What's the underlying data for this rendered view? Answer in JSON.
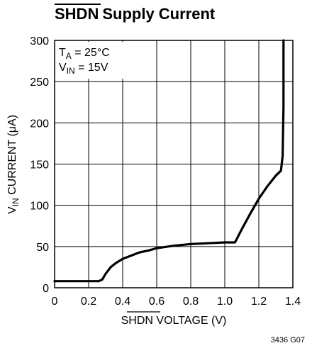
{
  "chart_data": {
    "type": "line",
    "title": "SHDN Supply Current",
    "xlabel": "SHDN VOLTAGE (V)",
    "ylabel": "VIN CURRENT (μA)",
    "xlim": [
      0,
      1.4
    ],
    "ylim": [
      0,
      300
    ],
    "x_ticks": [
      "0",
      "0.2",
      "0.4",
      "0.6",
      "0.8",
      "1.0",
      "1.2",
      "1.4"
    ],
    "y_ticks": [
      "0",
      "50",
      "100",
      "150",
      "200",
      "250",
      "300"
    ],
    "grid": true,
    "annotations": [
      "TA = 25°C",
      "VIN = 15V"
    ],
    "figure_id": "3436 G07",
    "series": [
      {
        "x": [
          0,
          0.26,
          0.28,
          0.3,
          0.33,
          0.36,
          0.4,
          0.45,
          0.5,
          0.55,
          0.6,
          0.7,
          0.8,
          0.9,
          1.0,
          1.06,
          1.1,
          1.15,
          1.2,
          1.25,
          1.3,
          1.33,
          1.34,
          1.345,
          1.345
        ],
        "y": [
          8,
          8,
          10,
          17,
          25,
          30,
          35,
          39,
          43,
          45,
          48,
          51,
          53,
          54,
          55,
          55,
          71,
          90,
          108,
          123,
          136,
          142,
          160,
          220,
          300
        ]
      }
    ]
  },
  "title_plain": "Supply Current",
  "title_overline": "SHDN",
  "x_title_overline": "SHDN",
  "x_title_rest": " VOLTAGE (V)",
  "y_title_prefix": "V",
  "y_title_sub": "IN",
  "y_title_rest": " CURRENT (μA)",
  "annot_ta_main": "T",
  "annot_ta_sub": "A",
  "annot_ta_rest": " = 25°C",
  "annot_vin_main": "V",
  "annot_vin_sub": "IN",
  "annot_vin_rest": " = 15V"
}
